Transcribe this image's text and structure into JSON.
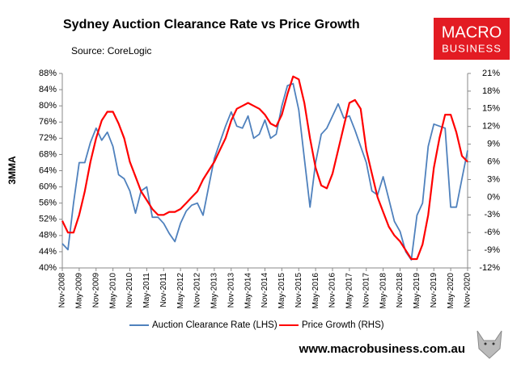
{
  "chart_data": {
    "type": "line",
    "title": "Sydney Auction Clearance Rate vs Price Growth",
    "subtitle": "Source: CoreLogic",
    "y_label": "3MMA",
    "categories": [
      "Nov-2008",
      null,
      null,
      "May-2009",
      null,
      null,
      "Nov-2009",
      null,
      null,
      "May-2010",
      null,
      null,
      "Nov-2010",
      null,
      null,
      "May-2011",
      null,
      null,
      "Nov-2011",
      null,
      null,
      "May-2012",
      null,
      null,
      "Nov-2012",
      null,
      null,
      "May-2013",
      null,
      null,
      "Nov-2013",
      null,
      null,
      "May-2014",
      null,
      null,
      "Nov-2014",
      null,
      null,
      "May-2015",
      null,
      null,
      "Nov-2015",
      null,
      null,
      "May-2016",
      null,
      null,
      "Nov-2016",
      null,
      null,
      "May-2017",
      null,
      null,
      "Nov-2017",
      null,
      null,
      "May-2018",
      null,
      null,
      "Nov-2018",
      null,
      null,
      "May-2019",
      null,
      null,
      "Nov-2019",
      null,
      null,
      "May-2020",
      null,
      null,
      "Nov-2020"
    ],
    "series": [
      {
        "name": "Auction Clearance Rate (LHS)",
        "color": "#4f81bd",
        "axis": "y",
        "values": [
          46,
          44.5,
          56,
          66,
          66,
          71,
          74.5,
          71.5,
          73.5,
          70,
          63,
          62,
          59,
          53.5,
          59,
          60,
          52.5,
          52.5,
          51,
          48.5,
          46.5,
          51,
          54,
          55.5,
          56,
          53,
          60,
          67,
          71,
          75,
          78.5,
          75,
          74.5,
          77.5,
          72,
          73,
          76.5,
          72,
          73,
          80,
          85,
          85.5,
          79,
          67,
          55,
          66,
          73,
          74.5,
          77.5,
          80.5,
          77,
          77.5,
          74,
          70,
          66,
          59,
          58,
          62.5,
          57,
          51.5,
          49,
          44,
          42,
          53,
          56,
          70,
          75.5,
          75,
          74.5,
          55,
          55,
          62,
          69
        ]
      },
      {
        "name": "Price Growth (RHS)",
        "color": "#ff0000",
        "axis": "y2",
        "values": [
          -4,
          -6,
          -6,
          -3,
          1,
          6,
          10,
          13,
          14.5,
          14.5,
          12.5,
          10,
          6,
          3.5,
          1,
          -0.5,
          -2,
          -3,
          -3,
          -2.5,
          -2.5,
          -2,
          -1,
          0,
          1,
          3,
          4.5,
          6,
          8,
          10,
          13,
          15,
          15.5,
          16,
          15.5,
          15,
          14,
          12.5,
          12,
          14,
          17.5,
          20.5,
          20,
          16,
          10,
          5,
          2,
          1.5,
          4,
          8,
          12,
          16,
          16.5,
          15,
          8,
          4,
          0,
          -2.5,
          -5,
          -6.5,
          -7.5,
          -9,
          -10.5,
          -10.5,
          -8,
          -3,
          5,
          10,
          14,
          14,
          11,
          7,
          6
        ]
      }
    ],
    "ylim": [
      40,
      88
    ],
    "yticks": [
      {
        "value": 40,
        "label": "40%"
      },
      {
        "value": 44,
        "label": "44%"
      },
      {
        "value": 48,
        "label": "48%"
      },
      {
        "value": 52,
        "label": "52%"
      },
      {
        "value": 56,
        "label": "56%"
      },
      {
        "value": 60,
        "label": "60%"
      },
      {
        "value": 64,
        "label": "64%"
      },
      {
        "value": 68,
        "label": "68%"
      },
      {
        "value": 72,
        "label": "72%"
      },
      {
        "value": 76,
        "label": "76%"
      },
      {
        "value": 80,
        "label": "80%"
      },
      {
        "value": 84,
        "label": "84%"
      },
      {
        "value": 88,
        "label": "88%"
      }
    ],
    "y2lim": [
      -12,
      21
    ],
    "y2ticks": [
      {
        "value": -12,
        "label": "-12%"
      },
      {
        "value": -9,
        "label": "-9%"
      },
      {
        "value": -6,
        "label": "-6%"
      },
      {
        "value": -3,
        "label": "-3%"
      },
      {
        "value": 0,
        "label": "0%"
      },
      {
        "value": 3,
        "label": "3%"
      },
      {
        "value": 6,
        "label": "6%"
      },
      {
        "value": 9,
        "label": "9%"
      },
      {
        "value": 12,
        "label": "12%"
      },
      {
        "value": 15,
        "label": "15%"
      },
      {
        "value": 18,
        "label": "18%"
      },
      {
        "value": 21,
        "label": "21%"
      }
    ],
    "grid": false,
    "legend": "bottom"
  },
  "branding": {
    "logo_top": "MACRO",
    "logo_bottom": "BUSINESS",
    "website": "www.macrobusiness.com.au"
  }
}
